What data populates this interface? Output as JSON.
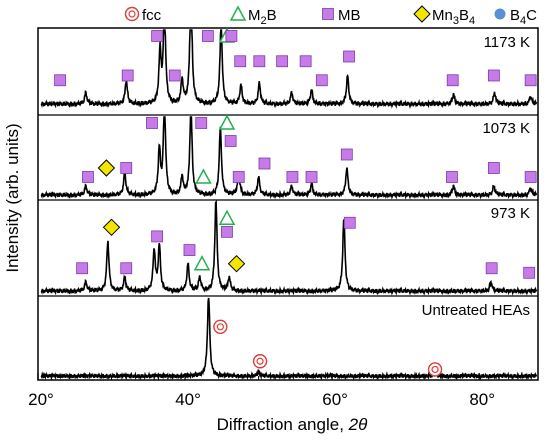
{
  "chart_data": {
    "type": "line",
    "xlabel_text": "Diffraction angle, ",
    "xlabel_var": "2θ",
    "ylabel": "Intensity (arb. units)",
    "xlim": [
      20,
      88
    ],
    "x_ticks": [
      20,
      40,
      60,
      80
    ],
    "x_tick_labels": [
      "20°",
      "40°",
      "60°",
      "80°"
    ],
    "legend": {
      "placement": "top",
      "entries": [
        {
          "marker": "circle-ring",
          "color": "#e03a3a",
          "base": "fcc",
          "sub": ""
        },
        {
          "marker": "triangle",
          "color": "#22b14c",
          "base": "M",
          "sub": "2",
          "tail": "B"
        },
        {
          "marker": "square",
          "color": "#c77be8",
          "base": "MB",
          "sub": ""
        },
        {
          "marker": "diamond",
          "color": "#f2e600",
          "base": "Mn",
          "sub": "3",
          "tail": "B",
          "sub2": "4"
        },
        {
          "marker": "dot",
          "color": "#5b8fd4",
          "base": "B",
          "sub": "4",
          "tail": "C"
        }
      ]
    },
    "series": [
      {
        "name": "1173 K",
        "peaks": [
          [
            26.5,
            0.12
          ],
          [
            32.0,
            0.25
          ],
          [
            36.6,
            0.55
          ],
          [
            37.2,
            1.0
          ],
          [
            39.6,
            0.25
          ],
          [
            40.8,
            1.25
          ],
          [
            44.9,
            0.85
          ],
          [
            47.6,
            0.2
          ],
          [
            50.1,
            0.22
          ],
          [
            54.5,
            0.12
          ],
          [
            57.2,
            0.15
          ],
          [
            62.1,
            0.3
          ],
          [
            76.5,
            0.1
          ],
          [
            82.1,
            0.12
          ],
          [
            87.0,
            0.08
          ]
        ],
        "markers": [
          {
            "type": "square",
            "x": 36.2,
            "y": 1.1
          },
          {
            "type": "square",
            "x": 43.1,
            "y": 1.1
          },
          {
            "type": "triangle",
            "x": 45.7,
            "y": 1.0
          },
          {
            "type": "square",
            "x": 46.3,
            "y": 0.8
          },
          {
            "type": "square",
            "x": 23.0,
            "y": 0.25
          },
          {
            "type": "square",
            "x": 32.2,
            "y": 0.3
          },
          {
            "type": "square",
            "x": 38.6,
            "y": 0.3
          },
          {
            "type": "square",
            "x": 47.5,
            "y": 0.45
          },
          {
            "type": "square",
            "x": 50.1,
            "y": 0.45
          },
          {
            "type": "square",
            "x": 53.2,
            "y": 0.45
          },
          {
            "type": "square",
            "x": 56.4,
            "y": 0.45
          },
          {
            "type": "square",
            "x": 62.3,
            "y": 0.5
          },
          {
            "type": "square",
            "x": 58.6,
            "y": 0.25
          },
          {
            "type": "square",
            "x": 76.4,
            "y": 0.25
          },
          {
            "type": "square",
            "x": 82.0,
            "y": 0.3
          },
          {
            "type": "square",
            "x": 87.0,
            "y": 0.25
          }
        ]
      },
      {
        "name": "1073 K",
        "peaks": [
          [
            26.5,
            0.1
          ],
          [
            31.8,
            0.25
          ],
          [
            36.5,
            0.5
          ],
          [
            37.2,
            1.0
          ],
          [
            39.6,
            0.2
          ],
          [
            40.8,
            1.0
          ],
          [
            44.8,
            0.75
          ],
          [
            47.3,
            0.25
          ],
          [
            50.0,
            0.2
          ],
          [
            54.5,
            0.1
          ],
          [
            57.2,
            0.12
          ],
          [
            62.0,
            0.3
          ],
          [
            76.5,
            0.1
          ],
          [
            82.0,
            0.1
          ],
          [
            87.0,
            0.08
          ]
        ],
        "markers": [
          {
            "type": "square",
            "x": 35.5,
            "y": 1.0
          },
          {
            "type": "square",
            "x": 42.2,
            "y": 0.95
          },
          {
            "type": "triangle",
            "x": 45.7,
            "y": 0.8
          },
          {
            "type": "square",
            "x": 46.2,
            "y": 0.6
          },
          {
            "type": "square",
            "x": 26.8,
            "y": 0.2
          },
          {
            "type": "diamond",
            "x": 29.3,
            "y": 0.3
          },
          {
            "type": "square",
            "x": 32.0,
            "y": 0.3
          },
          {
            "type": "triangle",
            "x": 42.5,
            "y": 0.2
          },
          {
            "type": "square",
            "x": 47.3,
            "y": 0.2
          },
          {
            "type": "square",
            "x": 50.8,
            "y": 0.35
          },
          {
            "type": "square",
            "x": 54.6,
            "y": 0.2
          },
          {
            "type": "square",
            "x": 57.2,
            "y": 0.2
          },
          {
            "type": "square",
            "x": 62.0,
            "y": 0.45
          },
          {
            "type": "square",
            "x": 76.3,
            "y": 0.2
          },
          {
            "type": "square",
            "x": 82.0,
            "y": 0.3
          },
          {
            "type": "square",
            "x": 87.0,
            "y": 0.2
          }
        ]
      },
      {
        "name": "973 K",
        "peaks": [
          [
            26.5,
            0.1
          ],
          [
            29.5,
            0.55
          ],
          [
            31.8,
            0.15
          ],
          [
            35.8,
            0.45
          ],
          [
            36.5,
            0.5
          ],
          [
            40.4,
            0.3
          ],
          [
            42.0,
            0.15
          ],
          [
            44.2,
            1.0
          ],
          [
            46.0,
            0.15
          ],
          [
            61.6,
            0.8
          ],
          [
            81.6,
            0.1
          ]
        ],
        "markers": [
          {
            "type": "diamond",
            "x": 30.0,
            "y": 0.7
          },
          {
            "type": "square",
            "x": 36.2,
            "y": 0.6
          },
          {
            "type": "square",
            "x": 40.6,
            "y": 0.45
          },
          {
            "type": "square",
            "x": 45.7,
            "y": 0.65
          },
          {
            "type": "triangle",
            "x": 45.7,
            "y": 0.8
          },
          {
            "type": "square",
            "x": 62.4,
            "y": 0.75
          },
          {
            "type": "square",
            "x": 26.0,
            "y": 0.25
          },
          {
            "type": "square",
            "x": 32.0,
            "y": 0.25
          },
          {
            "type": "triangle",
            "x": 42.3,
            "y": 0.3
          },
          {
            "type": "diamond",
            "x": 47.0,
            "y": 0.3
          },
          {
            "type": "square",
            "x": 81.7,
            "y": 0.25
          },
          {
            "type": "square",
            "x": 86.8,
            "y": 0.2
          }
        ]
      },
      {
        "name": "Untreated HEAs",
        "peaks": [
          [
            43.2,
            1.0
          ],
          [
            50.0,
            0.05
          ],
          [
            74.0,
            0.02
          ]
        ],
        "markers": [
          {
            "type": "circle-ring",
            "x": 44.8,
            "y": 0.6
          },
          {
            "type": "circle-ring",
            "x": 50.2,
            "y": 0.18
          },
          {
            "type": "circle-ring",
            "x": 74.0,
            "y": 0.08
          }
        ]
      }
    ]
  }
}
